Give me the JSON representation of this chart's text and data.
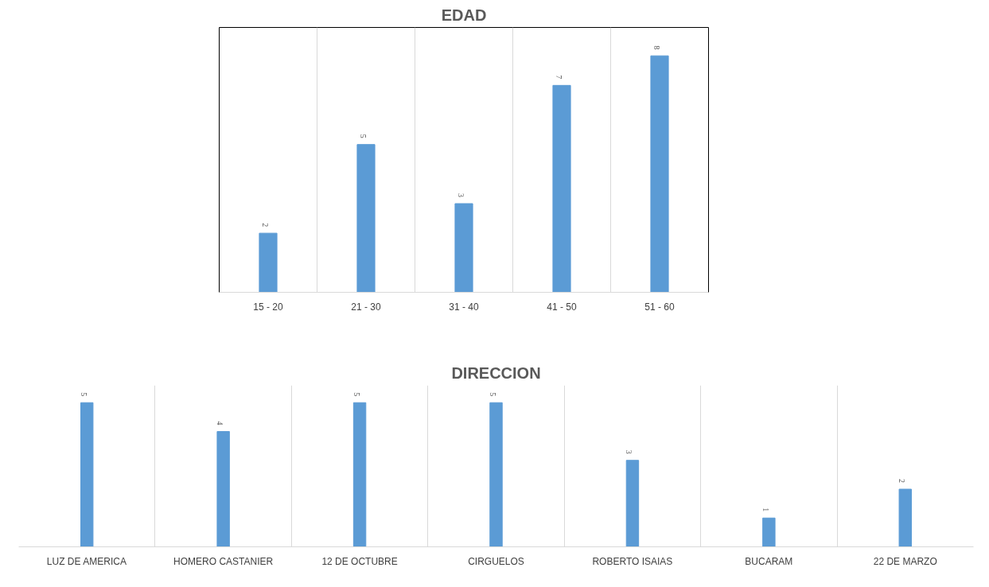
{
  "chart_data": [
    {
      "type": "bar",
      "title": "EDAD",
      "categories": [
        "15 - 20",
        "21 - 30",
        "31 - 40",
        "41 - 50",
        "51 - 60"
      ],
      "values": [
        2,
        5,
        3,
        7,
        8
      ],
      "color": "#5b9bd5",
      "data_labels": true,
      "grid": "x",
      "tick_labels": "x"
    },
    {
      "type": "bar",
      "title": "DIRECCION",
      "categories": [
        "LUZ DE AMERICA",
        "HOMERO CASTANIER",
        "12 DE OCTUBRE",
        "CIRGUELOS",
        "ROBERTO ISAIAS",
        "BUCARAM",
        "22 DE MARZO"
      ],
      "values": [
        5,
        4,
        5,
        5,
        3,
        1,
        2
      ],
      "color": "#5b9bd5",
      "data_labels": true,
      "grid": "x",
      "tick_labels": "x"
    }
  ]
}
